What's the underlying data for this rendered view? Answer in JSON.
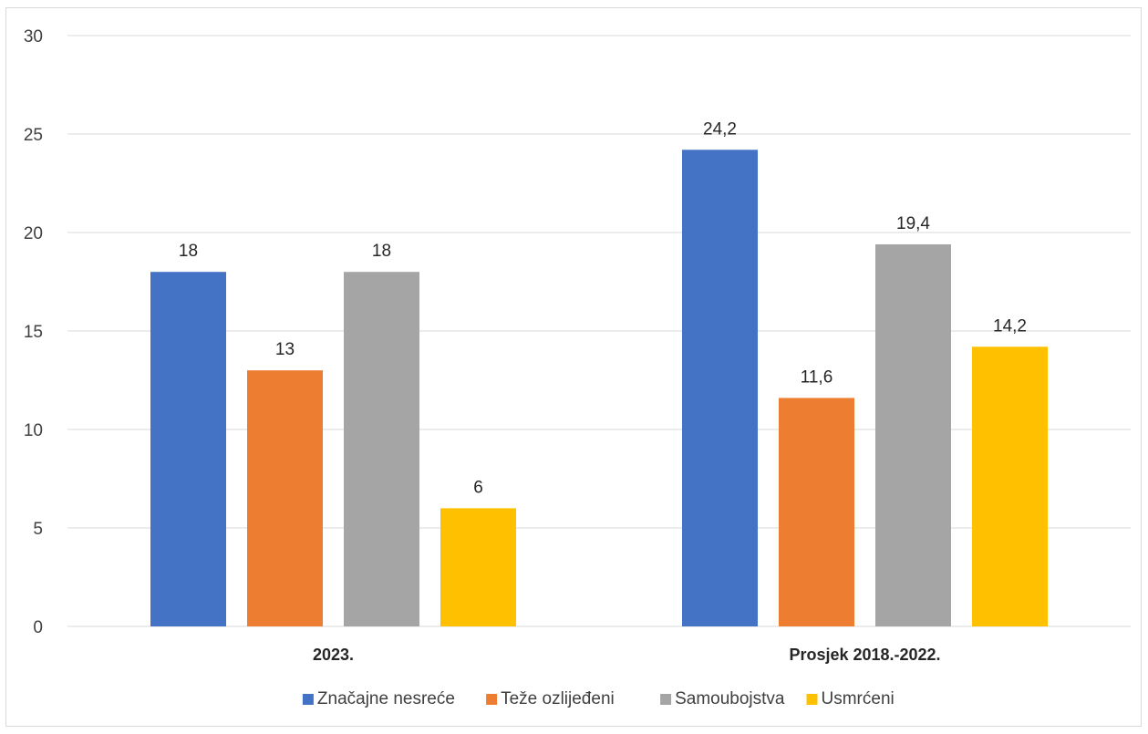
{
  "chart_data": {
    "type": "bar",
    "title": "",
    "xlabel": "",
    "ylabel": "",
    "categories": [
      "2023.",
      "Prosjek 2018.-2022."
    ],
    "series": [
      {
        "name": "Značajne nesreće",
        "color": "#4472C4",
        "values": [
          18,
          24.2
        ],
        "labels": [
          "18",
          "24,2"
        ]
      },
      {
        "name": "Teže ozlijeđeni",
        "color": "#ED7D31",
        "values": [
          13,
          11.6
        ],
        "labels": [
          "13",
          "11,6"
        ]
      },
      {
        "name": "Samoubojstva",
        "color": "#A5A5A5",
        "values": [
          18,
          19.4
        ],
        "labels": [
          "18",
          "19,4"
        ]
      },
      {
        "name": "Usmrćeni",
        "color": "#FFC000",
        "values": [
          6,
          14.2
        ],
        "labels": [
          "6",
          "14,2"
        ]
      }
    ],
    "ylim": [
      0,
      30
    ],
    "yticks": [
      "0",
      "5",
      "10",
      "15",
      "20",
      "25",
      "30"
    ],
    "grid": true,
    "legend_position": "bottom"
  }
}
